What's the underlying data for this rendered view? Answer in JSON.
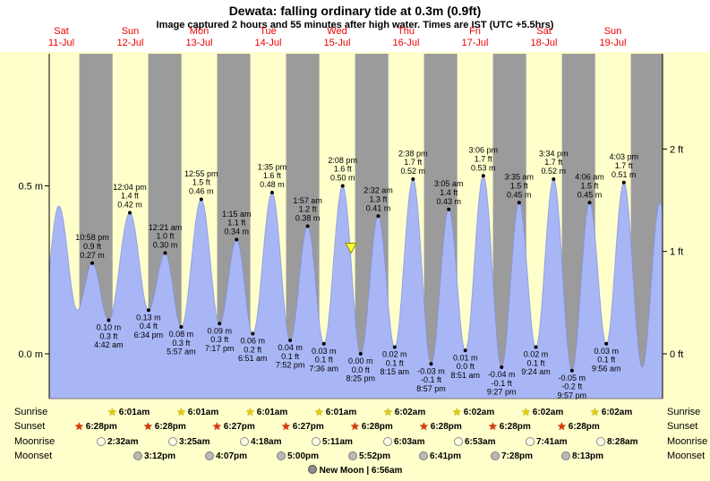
{
  "header": {
    "title": "Dewata: falling  ordinary tide at 0.3m (0.9ft)",
    "subtitle": "Image captured 2 hours and 55 minutes after high water. Times are IST (UTC +5.5hrs)"
  },
  "chart_data": {
    "type": "area",
    "title": "Dewata: falling ordinary tide at 0.3m (0.9ft)",
    "x_range_hours": [
      8,
      221.5
    ],
    "ylim_m": [
      -0.133,
      0.893
    ],
    "grid": false,
    "days": [
      {
        "name": "Sat",
        "date": "11-Jul"
      },
      {
        "name": "Sun",
        "date": "12-Jul"
      },
      {
        "name": "Mon",
        "date": "13-Jul"
      },
      {
        "name": "Tue",
        "date": "14-Jul"
      },
      {
        "name": "Wed",
        "date": "15-Jul"
      },
      {
        "name": "Thu",
        "date": "16-Jul"
      },
      {
        "name": "Fri",
        "date": "17-Jul"
      },
      {
        "name": "Sat",
        "date": "18-Jul"
      },
      {
        "name": "Sun",
        "date": "19-Jul"
      }
    ],
    "y_axis_left_ticks": [
      {
        "label": "0.5 m",
        "m": 0.5
      },
      {
        "label": "0.0 m",
        "m": 0.0
      }
    ],
    "y_axis_right_ticks": [
      {
        "label": "2 ft",
        "m": 0.6096
      },
      {
        "label": "1 ft",
        "m": 0.3048
      },
      {
        "label": "0 ft",
        "m": 0.0
      }
    ],
    "tides": [
      {
        "day": 0,
        "time": "5:10 am",
        "m": 0.1,
        "kind": "edge"
      },
      {
        "day": 0,
        "time": "11:20 am",
        "m": 0.44,
        "kind": "edge"
      },
      {
        "day": 0,
        "time": "5:45 pm",
        "m": 0.13,
        "kind": "edge"
      },
      {
        "day": 0,
        "time": "10:58 pm",
        "m": 0.27,
        "kind": "high",
        "lines": [
          "10:58 pm",
          "0.9 ft",
          "0.27 m"
        ]
      },
      {
        "day": 1,
        "time": "4:42 am",
        "m": 0.1,
        "kind": "low",
        "lines": [
          "0.10 m",
          "0.3 ft",
          "4:42 am"
        ]
      },
      {
        "day": 1,
        "time": "12:04 pm",
        "m": 0.42,
        "kind": "high",
        "lines": [
          "12:04 pm",
          "1.4 ft",
          "0.42 m"
        ]
      },
      {
        "day": 1,
        "time": "6:34 pm",
        "m": 0.13,
        "kind": "low",
        "lines": [
          "0.13 m",
          "0.4 ft",
          "6:34 pm"
        ]
      },
      {
        "day": 2,
        "time": "12:21 am",
        "m": 0.3,
        "kind": "high",
        "lines": [
          "12:21 am",
          "1.0 ft",
          "0.30 m"
        ]
      },
      {
        "day": 2,
        "time": "5:57 am",
        "m": 0.08,
        "kind": "low",
        "lines": [
          "0.08 m",
          "0.3 ft",
          "5:57 am"
        ]
      },
      {
        "day": 2,
        "time": "12:55 pm",
        "m": 0.46,
        "kind": "high",
        "lines": [
          "12:55 pm",
          "1.5 ft",
          "0.46 m"
        ]
      },
      {
        "day": 2,
        "time": "7:17 pm",
        "m": 0.09,
        "kind": "low",
        "lines": [
          "0.09 m",
          "0.3 ft",
          "7:17 pm"
        ]
      },
      {
        "day": 3,
        "time": "1:15 am",
        "m": 0.34,
        "kind": "high",
        "lines": [
          "1:15 am",
          "1.1 ft",
          "0.34 m"
        ]
      },
      {
        "day": 3,
        "time": "6:51 am",
        "m": 0.06,
        "kind": "low",
        "lines": [
          "0.06 m",
          "0.2 ft",
          "6:51 am"
        ]
      },
      {
        "day": 3,
        "time": "1:35 pm",
        "m": 0.48,
        "kind": "high",
        "lines": [
          "1:35 pm",
          "1.6 ft",
          "0.48 m"
        ]
      },
      {
        "day": 3,
        "time": "7:52 pm",
        "m": 0.04,
        "kind": "low",
        "lines": [
          "0.04 m",
          "0.1 ft",
          "7:52 pm"
        ]
      },
      {
        "day": 4,
        "time": "1:57 am",
        "m": 0.38,
        "kind": "high",
        "lines": [
          "1:57 am",
          "1.2 ft",
          "0.38 m"
        ]
      },
      {
        "day": 4,
        "time": "7:36 am",
        "m": 0.03,
        "kind": "low",
        "lines": [
          "0.03 m",
          "0.1 ft",
          "7:36 am"
        ]
      },
      {
        "day": 4,
        "time": "2:08 pm",
        "m": 0.5,
        "kind": "high",
        "lines": [
          "2:08 pm",
          "1.6 ft",
          "0.50 m"
        ]
      },
      {
        "day": 4,
        "time": "8:25 pm",
        "m": 0.0,
        "kind": "low",
        "lines": [
          "0.00 m",
          "0.0 ft",
          "8:25 pm"
        ]
      },
      {
        "day": 5,
        "time": "2:32 am",
        "m": 0.41,
        "kind": "high",
        "lines": [
          "2:32 am",
          "1.3 ft",
          "0.41 m"
        ]
      },
      {
        "day": 5,
        "time": "8:15 am",
        "m": 0.02,
        "kind": "low",
        "lines": [
          "0.02 m",
          "0.1 ft",
          "8:15 am"
        ]
      },
      {
        "day": 5,
        "time": "2:38 pm",
        "m": 0.52,
        "kind": "high",
        "lines": [
          "2:38 pm",
          "1.7 ft",
          "0.52 m"
        ]
      },
      {
        "day": 5,
        "time": "8:57 pm",
        "m": -0.03,
        "kind": "low",
        "lines": [
          "-0.03 m",
          "-0.1 ft",
          "8:57 pm"
        ]
      },
      {
        "day": 6,
        "time": "3:05 am",
        "m": 0.43,
        "kind": "high",
        "lines": [
          "3:05 am",
          "1.4 ft",
          "0.43 m"
        ]
      },
      {
        "day": 6,
        "time": "8:51 am",
        "m": 0.01,
        "kind": "low",
        "lines": [
          "0.01 m",
          "0.0 ft",
          "8:51 am"
        ]
      },
      {
        "day": 6,
        "time": "3:06 pm",
        "m": 0.53,
        "kind": "high",
        "lines": [
          "3:06 pm",
          "1.7 ft",
          "0.53 m"
        ]
      },
      {
        "day": 6,
        "time": "9:27 pm",
        "m": -0.04,
        "kind": "low",
        "lines": [
          "-0.04 m",
          "-0.1 ft",
          "9:27 pm"
        ]
      },
      {
        "day": 7,
        "time": "3:35 am",
        "m": 0.45,
        "kind": "high",
        "lines": [
          "3:35 am",
          "1.5 ft",
          "0.45 m"
        ]
      },
      {
        "day": 7,
        "time": "9:24 am",
        "m": 0.02,
        "kind": "low",
        "lines": [
          "0.02 m",
          "0.1 ft",
          "9:24 am"
        ]
      },
      {
        "day": 7,
        "time": "3:34 pm",
        "m": 0.52,
        "kind": "high",
        "lines": [
          "3:34 pm",
          "1.7 ft",
          "0.52 m"
        ]
      },
      {
        "day": 7,
        "time": "9:57 pm",
        "m": -0.05,
        "kind": "low",
        "lines": [
          "-0.05 m",
          "-0.2 ft",
          "9:57 pm"
        ]
      },
      {
        "day": 8,
        "time": "4:06 am",
        "m": 0.45,
        "kind": "high",
        "lines": [
          "4:06 am",
          "1.5 ft",
          "0.45 m"
        ]
      },
      {
        "day": 8,
        "time": "9:56 am",
        "m": 0.03,
        "kind": "low",
        "lines": [
          "0.03 m",
          "0.1 ft",
          "9:56 am"
        ]
      },
      {
        "day": 8,
        "time": "4:03 pm",
        "m": 0.51,
        "kind": "high",
        "lines": [
          "4:03 pm",
          "1.7 ft",
          "0.51 m"
        ]
      },
      {
        "day": 8,
        "time": "10:25 pm",
        "m": -0.04,
        "kind": "edge"
      },
      {
        "day": 9,
        "time": "4:35 am",
        "m": 0.45,
        "kind": "edge"
      },
      {
        "day": 9,
        "time": "10:50 am",
        "m": -0.03,
        "kind": "edge"
      }
    ],
    "marker": {
      "day": 4,
      "time": "5:03 pm",
      "m": 0.3,
      "shape": "triangle-down"
    },
    "extra_night_starts": [
      {
        "day": 8,
        "time": "6:28 pm"
      }
    ]
  },
  "astronomy": {
    "rows": [
      {
        "id": "sunrise",
        "label": "Sunrise",
        "icon": "sunrise-star",
        "events": [
          {
            "day": 1,
            "time": "6:01am"
          },
          {
            "day": 2,
            "time": "6:01am"
          },
          {
            "day": 3,
            "time": "6:01am"
          },
          {
            "day": 4,
            "time": "6:01am"
          },
          {
            "day": 5,
            "time": "6:02am"
          },
          {
            "day": 6,
            "time": "6:02am"
          },
          {
            "day": 7,
            "time": "6:02am"
          },
          {
            "day": 8,
            "time": "6:02am"
          }
        ]
      },
      {
        "id": "sunset",
        "label": "Sunset",
        "icon": "sunset-star",
        "events": [
          {
            "day": 0,
            "time": "6:28pm"
          },
          {
            "day": 1,
            "time": "6:28pm"
          },
          {
            "day": 2,
            "time": "6:27pm"
          },
          {
            "day": 3,
            "time": "6:27pm"
          },
          {
            "day": 4,
            "time": "6:28pm"
          },
          {
            "day": 5,
            "time": "6:28pm"
          },
          {
            "day": 6,
            "time": "6:28pm"
          },
          {
            "day": 7,
            "time": "6:28pm"
          }
        ]
      },
      {
        "id": "moonrise",
        "label": "Moonrise",
        "icon": "moonrise-circle",
        "events": [
          {
            "day": 1,
            "time": "2:32am"
          },
          {
            "day": 2,
            "time": "3:25am"
          },
          {
            "day": 3,
            "time": "4:18am"
          },
          {
            "day": 4,
            "time": "5:11am"
          },
          {
            "day": 5,
            "time": "6:03am"
          },
          {
            "day": 6,
            "time": "6:53am"
          },
          {
            "day": 7,
            "time": "7:41am"
          },
          {
            "day": 8,
            "time": "8:28am"
          }
        ]
      },
      {
        "id": "moonset",
        "label": "Moonset",
        "icon": "moonset-circle",
        "events": [
          {
            "day": 1,
            "time": "3:12pm"
          },
          {
            "day": 2,
            "time": "4:07pm"
          },
          {
            "day": 3,
            "time": "5:00pm"
          },
          {
            "day": 4,
            "time": "5:52pm"
          },
          {
            "day": 5,
            "time": "6:41pm"
          },
          {
            "day": 6,
            "time": "7:28pm"
          },
          {
            "day": 7,
            "time": "8:13pm"
          }
        ]
      }
    ],
    "new_moon": {
      "icon": "new-moon-circle",
      "text": "New Moon | 6:56am"
    }
  },
  "colors": {
    "background": "#ffffcc",
    "header_background": "#ffffff",
    "night_band": "#9b9b9b",
    "day_band": "#ffffcc",
    "tide_fill": "#a9b6f6",
    "tide_stroke": "#7d8fe0",
    "day_label": "#ee0000",
    "marker_fill": "#ffff33",
    "marker_stroke": "#8a8a00",
    "axis": "#000000"
  }
}
